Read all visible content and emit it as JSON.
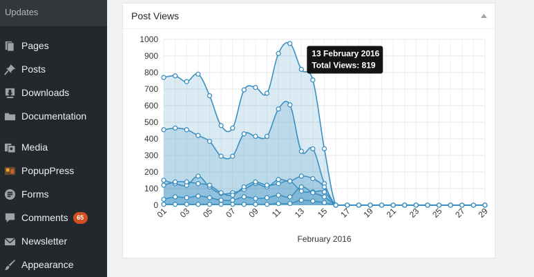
{
  "sidebar": {
    "updates_label": "Updates",
    "items": [
      {
        "label": "Pages",
        "icon": "pages-icon"
      },
      {
        "label": "Posts",
        "icon": "pin-icon"
      },
      {
        "label": "Downloads",
        "icon": "download-icon"
      },
      {
        "label": "Documentation",
        "icon": "folder-icon"
      },
      {
        "label": "Media",
        "icon": "media-icon"
      },
      {
        "label": "PopupPress",
        "icon": "popuppress-icon"
      },
      {
        "label": "Forms",
        "icon": "forms-icon"
      },
      {
        "label": "Comments",
        "icon": "comment-icon",
        "badge": "65"
      },
      {
        "label": "Newsletter",
        "icon": "envelope-icon"
      },
      {
        "label": "Appearance",
        "icon": "brush-icon"
      }
    ]
  },
  "widget": {
    "title": "Post Views"
  },
  "tooltip": {
    "date": "13 February 2016",
    "value_text": "Total Views: 819"
  },
  "colors": {
    "line": "#3a8fc0",
    "sidebar_bg": "#23282d",
    "badge": "#d54e21"
  },
  "chart_data": {
    "type": "area",
    "xlabel": "February 2016",
    "ylabel": "",
    "x": [
      1,
      2,
      3,
      4,
      5,
      6,
      7,
      8,
      9,
      10,
      11,
      12,
      13,
      14,
      15,
      16,
      17,
      18,
      19,
      20,
      21,
      22,
      23,
      24,
      25,
      26,
      27,
      28,
      29
    ],
    "xticks": [
      "01",
      "03",
      "05",
      "07",
      "09",
      "11",
      "13",
      "15",
      "17",
      "19",
      "21",
      "23",
      "25",
      "27",
      "29"
    ],
    "yticks": [
      0,
      100,
      200,
      300,
      400,
      500,
      600,
      700,
      800,
      900,
      1000
    ],
    "ylim": [
      0,
      1000
    ],
    "grid": true,
    "series": [
      {
        "values": [
          770,
          780,
          745,
          790,
          660,
          480,
          465,
          695,
          710,
          675,
          915,
          975,
          819,
          755,
          340,
          0,
          0,
          0,
          0,
          0,
          0,
          0,
          0,
          0,
          0,
          0,
          0,
          0,
          0
        ]
      },
      {
        "values": [
          455,
          465,
          455,
          420,
          385,
          295,
          295,
          430,
          415,
          415,
          580,
          605,
          325,
          340,
          130,
          0,
          0,
          0,
          0,
          0,
          0,
          0,
          0,
          0,
          0,
          0,
          0,
          0,
          0
        ]
      },
      {
        "values": [
          150,
          130,
          120,
          175,
          110,
          70,
          75,
          95,
          130,
          110,
          155,
          145,
          175,
          160,
          110,
          0,
          0,
          0,
          0,
          0,
          0,
          0,
          0,
          0,
          0,
          0,
          0,
          0,
          0
        ]
      },
      {
        "values": [
          120,
          140,
          140,
          130,
          120,
          75,
          60,
          110,
          140,
          120,
          130,
          145,
          85,
          80,
          80,
          0,
          0,
          0,
          0,
          0,
          0,
          0,
          0,
          0,
          0,
          0,
          0,
          0,
          0
        ]
      },
      {
        "values": [
          35,
          50,
          45,
          55,
          45,
          30,
          30,
          50,
          40,
          45,
          60,
          50,
          110,
          75,
          50,
          0,
          0,
          0,
          0,
          0,
          0,
          0,
          0,
          0,
          0,
          0,
          0,
          0,
          0
        ]
      },
      {
        "values": [
          5,
          5,
          5,
          5,
          5,
          5,
          5,
          5,
          5,
          5,
          10,
          10,
          30,
          25,
          15,
          0,
          0,
          0,
          0,
          0,
          0,
          0,
          0,
          0,
          0,
          0,
          0,
          0,
          0
        ]
      }
    ],
    "tooltip_point": {
      "x": 13,
      "y": 819
    }
  }
}
